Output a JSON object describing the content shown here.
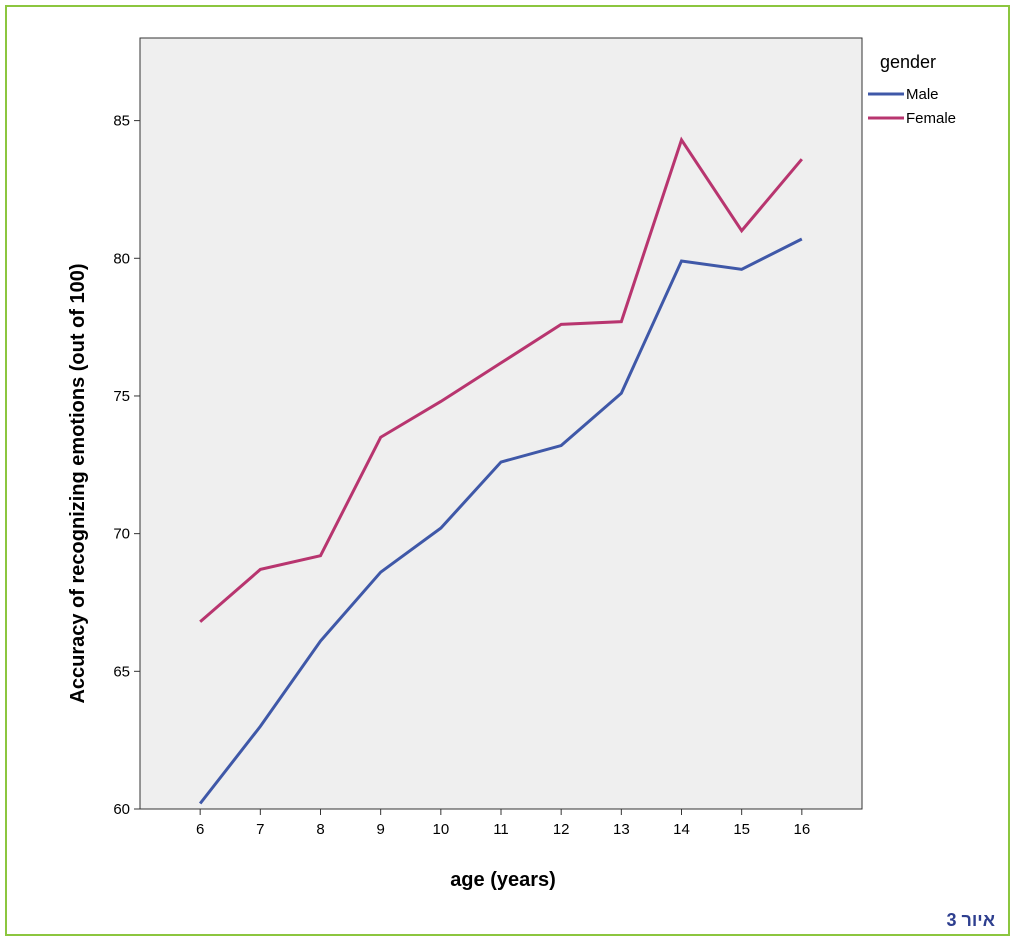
{
  "caption": "איור 3",
  "colors": {
    "frame": "#8cc63f",
    "plot_bg": "#efefef",
    "male": "#3f58a8",
    "female": "#b8356f",
    "caption": "#2e3f8f"
  },
  "chart_data": {
    "type": "line",
    "xlabel": "age (years)",
    "ylabel": "Accuracy of recognizing emotions (out of 100)",
    "x": [
      6,
      7,
      8,
      9,
      10,
      11,
      12,
      13,
      14,
      15,
      16
    ],
    "xlim": [
      5,
      17
    ],
    "ylim": [
      60,
      88
    ],
    "yticks": [
      60,
      65,
      70,
      75,
      80,
      85
    ],
    "grid": false,
    "legend": {
      "title": "gender",
      "placement": "outside-top-right"
    },
    "series": [
      {
        "name": "Male",
        "color": "#3f58a8",
        "values": [
          60.2,
          63.0,
          66.1,
          68.6,
          70.2,
          72.6,
          73.2,
          75.1,
          79.9,
          79.6,
          80.7
        ]
      },
      {
        "name": "Female",
        "color": "#b8356f",
        "values": [
          66.8,
          68.7,
          69.2,
          73.5,
          74.8,
          76.2,
          77.6,
          77.7,
          84.3,
          81.0,
          83.6
        ]
      }
    ]
  }
}
